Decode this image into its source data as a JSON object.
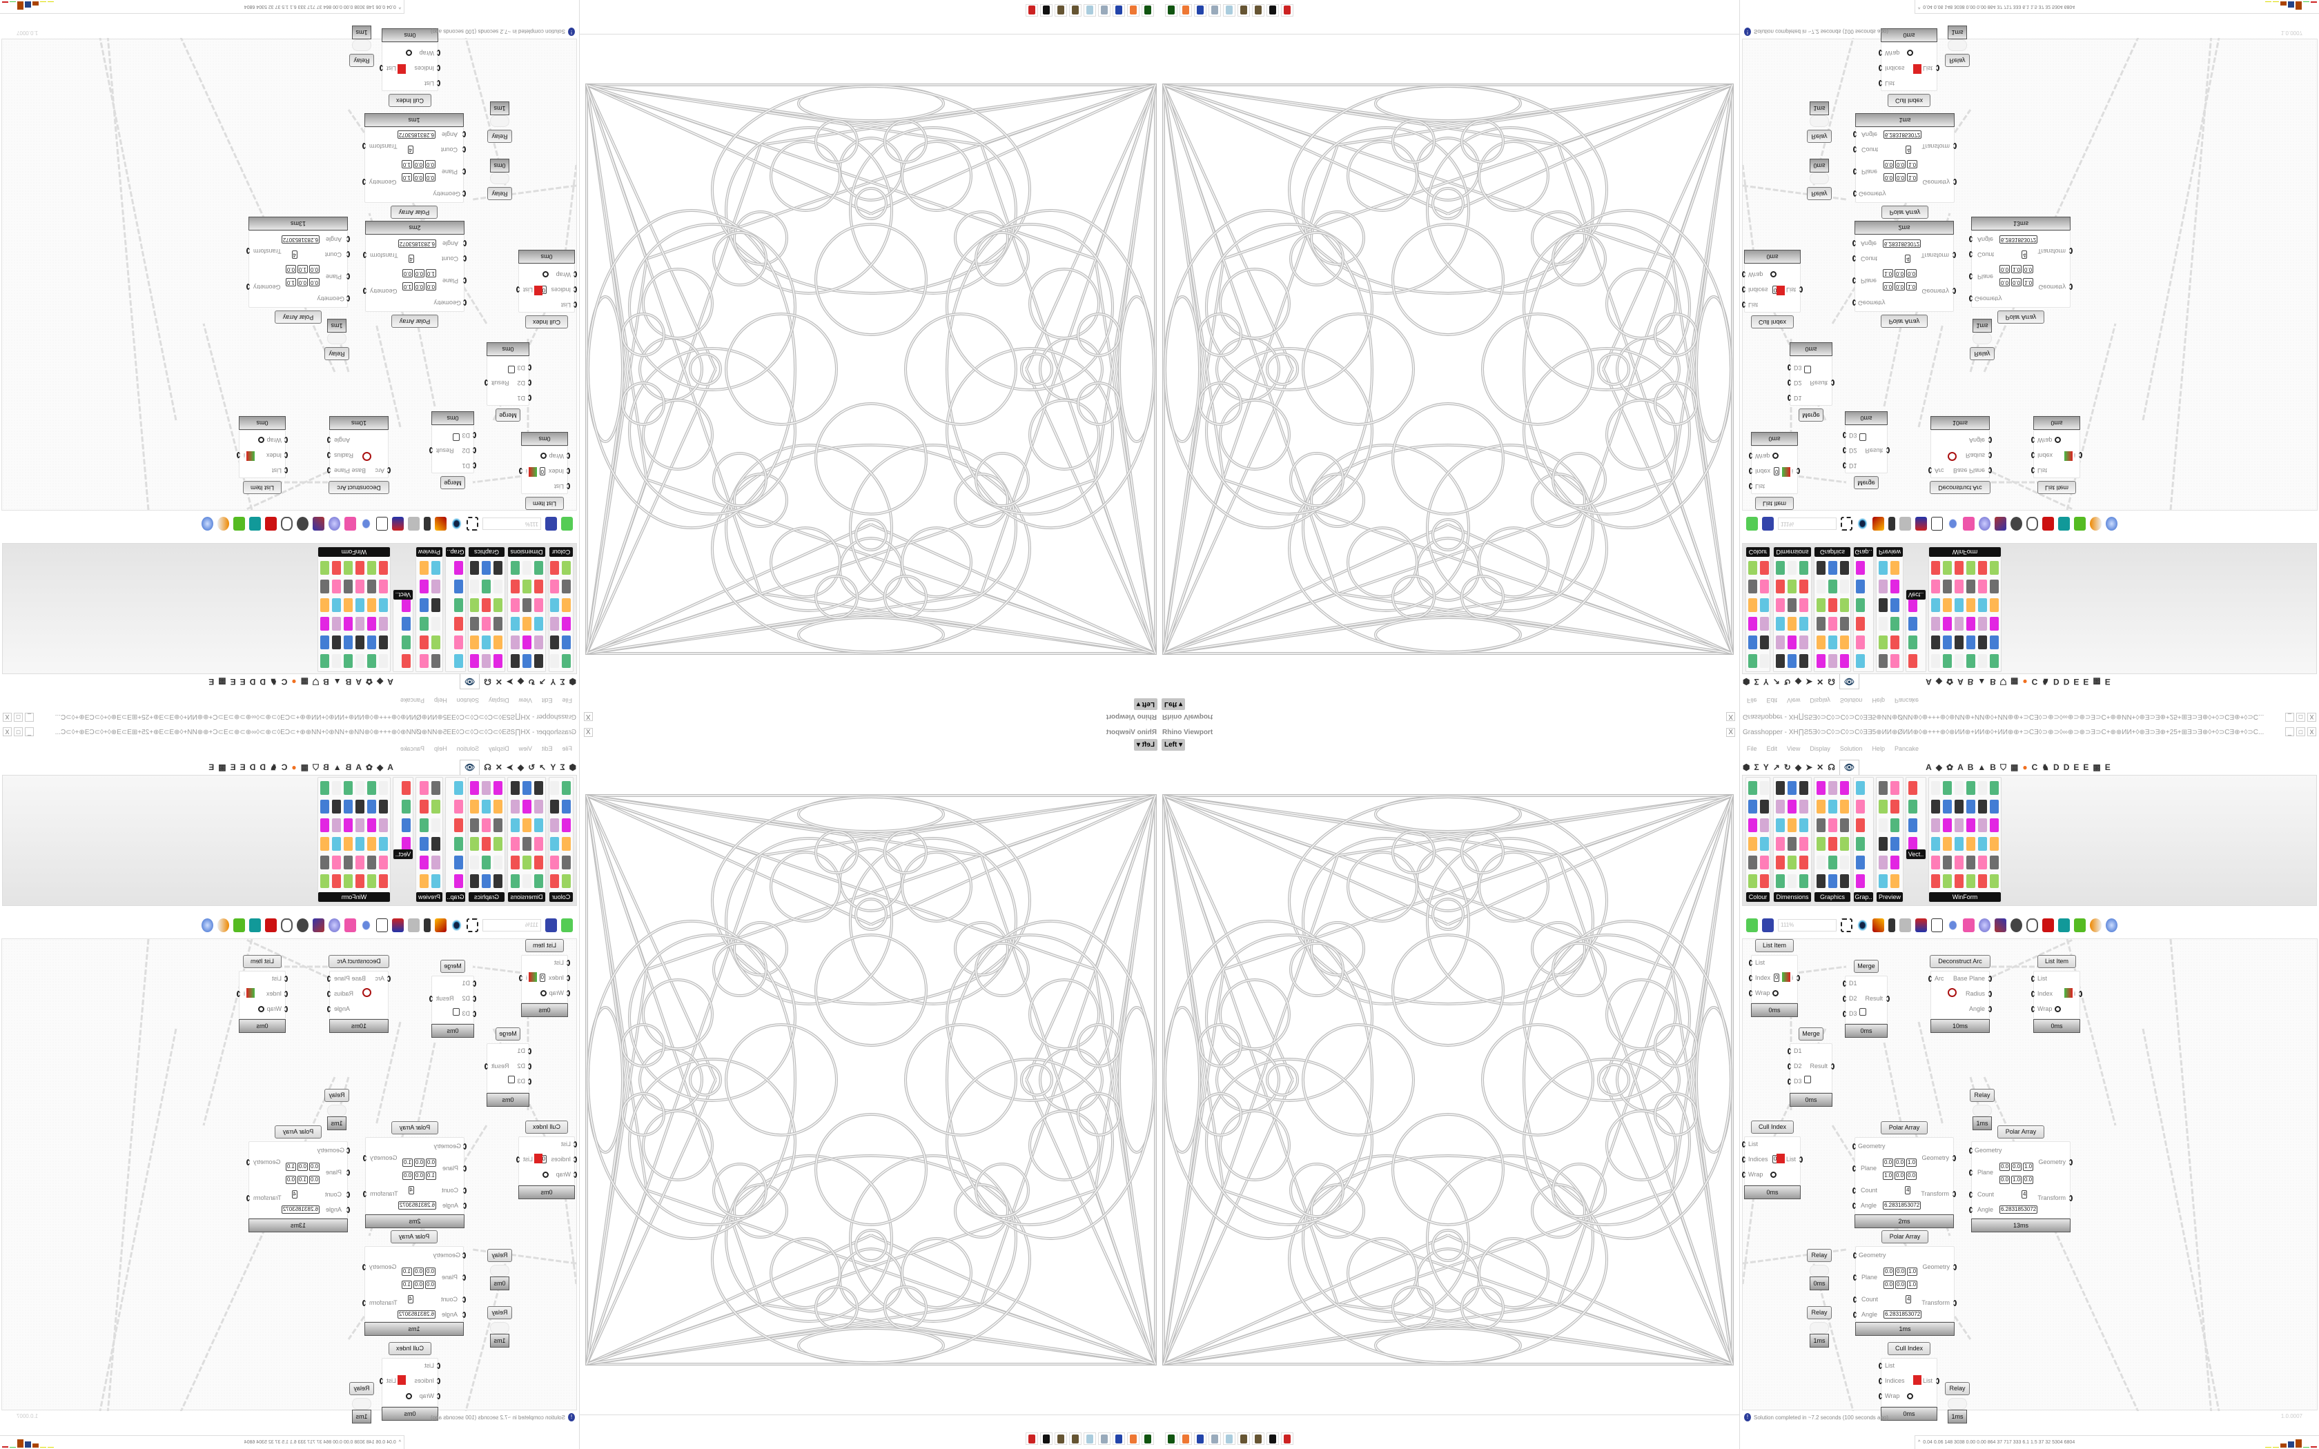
{
  "viewport": {
    "title": "Rhino Viewport",
    "view_tab": "Left",
    "close_label": "X"
  },
  "taskbar": {
    "icons": [
      "computer-icon",
      "firefox-icon",
      "floppy-64-icon",
      "printer-icon",
      "notepad-icon",
      "cog-icon",
      "cog-icon",
      "rhino-icon",
      "gear-red-icon"
    ]
  },
  "grasshopper": {
    "title": "Grasshopper - XH∏Ƨ5Ǝ◊⊃C◊⊃C◊⊃C◊ƎƎ5⊕ИИ⊕ØИИ⊕◊⊕+++⊕◊⊕ИИ⊕+ИИ⊕◊+ИИ⊕⊕+⊃CƎ◊⊃⊕⊃◊∞⊕⊃⊕⊃Ǝ⊃C+⊕⊕ИИ+◊⊕Ǝ⊃Ǝ⊕+25+⊞Ǝ⊃Ǝ⊕◊+◊⊃CƎ⊕+◊⊃C...",
    "window_buttons": [
      "_",
      "□",
      "X"
    ],
    "menu": [
      "File",
      "Edit",
      "View",
      "Display",
      "Solution",
      "Help",
      "Pancake"
    ],
    "tabs": [
      "⬢",
      "Σ",
      "Y",
      "↗",
      "↻",
      "◆",
      "➤",
      "✕",
      "☊",
      "👁",
      "A",
      "◆",
      "✿",
      "A",
      "B",
      "▲",
      "B",
      "⛉",
      "▦",
      "●",
      "C",
      "♞",
      "D",
      "D",
      "E",
      "E",
      "▩",
      "E"
    ],
    "active_tab_index": 9,
    "panel_groups": [
      "Colour",
      "Dimensions",
      "Graphics",
      "Grap..",
      "Preview",
      "Vect..",
      "WinForm"
    ],
    "zoom": "111%",
    "status": "Solution completed in ~7.2 seconds (100 seconds ago)",
    "version": "1.0.0007",
    "perf": "0.04 0.06 148 3038 0.00 0.00 864 37 717 333 6.1 1.5 37 32 5304 6804",
    "nodes": [
      {
        "type": "listitem",
        "title": "List Item",
        "time": "0ms",
        "inputs": [
          "List",
          "Index",
          "Wrap"
        ],
        "outputs": [
          "i"
        ],
        "index_value": "0"
      },
      {
        "type": "merge",
        "title": "Merge",
        "time": "0ms",
        "inputs": [
          "D1",
          "D2",
          "D3"
        ],
        "outputs": [
          "Result"
        ]
      },
      {
        "type": "merge",
        "title": "Merge",
        "time": "0ms",
        "inputs": [
          "D1",
          "D2",
          "D3"
        ],
        "outputs": [
          "Result"
        ]
      },
      {
        "type": "arc",
        "title": "Deconstruct Arc",
        "time": "10ms",
        "inputs": [
          "Arc"
        ],
        "outputs": [
          "Base Plane",
          "Radius",
          "Angle"
        ]
      },
      {
        "type": "listitem",
        "title": "List Item",
        "time": "0ms",
        "inputs": [
          "List",
          "Index",
          "Wrap"
        ],
        "outputs": [
          "i"
        ],
        "index_value": ""
      },
      {
        "type": "relay",
        "title": "Relay",
        "time": "1ms"
      },
      {
        "type": "cull",
        "title": "Cull Index",
        "time": "0ms",
        "inputs": [
          "List",
          "Indices",
          "Wrap"
        ],
        "outputs": [
          "List"
        ],
        "index_value": "0"
      },
      {
        "type": "polar",
        "title": "Polar Array",
        "time": "2ms",
        "inputs": [
          "Geometry",
          "Plane",
          "Count",
          "Angle"
        ],
        "outputs": [
          "Geometry",
          "Transform"
        ],
        "plane_o": [
          "0.0",
          "0.0",
          "1.0"
        ],
        "plane_z": [
          "1.0",
          "0.0",
          "0.0"
        ],
        "count": "4",
        "angle": "6.2831853072"
      },
      {
        "type": "polar",
        "title": "Polar Array",
        "time": "13ms",
        "inputs": [
          "Geometry",
          "Plane",
          "Count",
          "Angle"
        ],
        "outputs": [
          "Geometry",
          "Transform"
        ],
        "plane_o": [
          "0.0",
          "0.0",
          "1.0"
        ],
        "plane_z": [
          "0.0",
          "1.0",
          "0.0"
        ],
        "count": "4",
        "angle": "6.2831853072"
      },
      {
        "type": "polar",
        "title": "Polar Array",
        "time": "1ms",
        "inputs": [
          "Geometry",
          "Plane",
          "Count",
          "Angle"
        ],
        "outputs": [
          "Geometry",
          "Transform"
        ],
        "plane_o": [
          "0.0",
          "0.0",
          "1.0"
        ],
        "plane_z": [
          "0.0",
          "0.0",
          "1.0"
        ],
        "count": "4",
        "angle": "6.2831853072"
      },
      {
        "type": "relay",
        "title": "Relay",
        "time": "0ms"
      },
      {
        "type": "relay",
        "title": "Relay",
        "time": "1ms"
      },
      {
        "type": "cull",
        "title": "Cull Index",
        "time": "0ms",
        "inputs": [
          "List",
          "Indices",
          "Wrap"
        ],
        "outputs": [
          "List"
        ],
        "index_value": ""
      },
      {
        "type": "relay",
        "title": "Relay",
        "time": "1ms"
      }
    ]
  },
  "colors": {
    "accent_orange": "#f07020",
    "status_blue": "#2a3c9a",
    "footer_gray": "#9c9c9c"
  },
  "mirroring": [
    "bottom-right original",
    "bottom-left mirrored horizontally",
    "top-right mirrored vertically",
    "top-left mirrored both ways"
  ]
}
